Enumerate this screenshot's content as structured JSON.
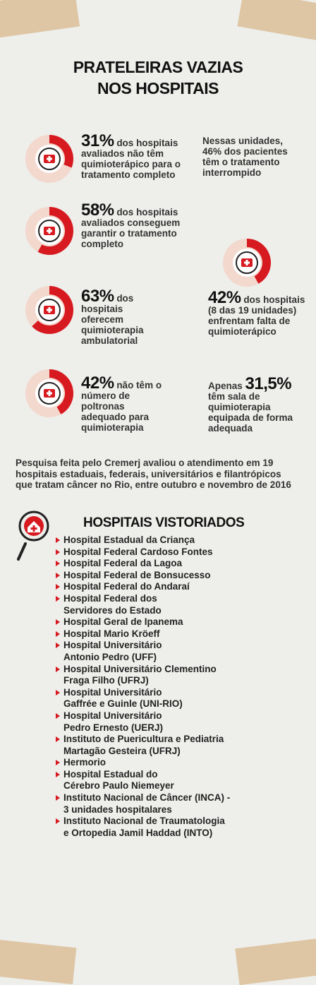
{
  "title": [
    "PRATELEIRAS VAZIAS",
    "NOS HOSPITAIS"
  ],
  "stats": [
    {
      "value": 31,
      "value_label": "31%",
      "text": "dos hospitais avaliados não têm quimioterápico para o tratamento completo"
    },
    {
      "value": 58,
      "value_label": "58%",
      "text": "dos hospitais avaliados conseguem garantir o tratamento completo"
    },
    {
      "value": 63,
      "value_label": "63%",
      "text": "dos hospitais oferecem quimioterapia ambulatorial"
    },
    {
      "value": 42,
      "value_label": "42%",
      "text": "não têm o número de poltronas adequado para quimioterapia"
    },
    {
      "value": 42,
      "value_label": "42%",
      "text": "dos hospitais (8 das 19 unidades) enfrentam falta de quimioterápico"
    }
  ],
  "notes": [
    {
      "text": "Nessas unidades, 46% dos pacientes têm o tratamento interrompido"
    },
    {
      "prefix": "Apenas",
      "value_label": "31,5%",
      "text": "têm sala de quimioterapia equipada de forma adequada"
    }
  ],
  "footnote": "Pesquisa feita pelo Cremerj avaliou o atendimento em 19 hospitais estaduais, federais, universitários e filantrópicos que tratam câncer no Rio, entre outubro e novembro de 2016",
  "list_title": "HOSPITAIS VISTORIADOS",
  "hospitals": [
    [
      "Hospital Estadual da Criança"
    ],
    [
      "Hospital Federal Cardoso Fontes"
    ],
    [
      "Hospital Federal da Lagoa"
    ],
    [
      "Hospital Federal de Bonsucesso"
    ],
    [
      "Hospital Federal do Andaraí"
    ],
    [
      "Hospital Federal dos",
      "Servidores do Estado"
    ],
    [
      "Hospital Geral de Ipanema"
    ],
    [
      "Hospital Mario Kröeff"
    ],
    [
      "Hospital Universitário",
      "Antonio Pedro (UFF)"
    ],
    [
      "Hospital Universitário Clementino",
      "Fraga Filho (UFRJ)"
    ],
    [
      "Hospital Universitário",
      "Gaffrée e Guinle (UNI-RIO)"
    ],
    [
      "Hospital Universitário",
      "Pedro Ernesto (UERJ)"
    ],
    [
      "Instituto de Puericultura e Pediatria",
      "Martagão Gesteira (UFRJ)"
    ],
    [
      "Hermorio"
    ],
    [
      "Hospital Estadual do",
      "Cérebro Paulo Niemeyer"
    ],
    [
      "Instituto Nacional de Câncer (INCA) -",
      "3 unidades hospitalares"
    ],
    [
      "Instituto Nacional de Traumatologia",
      "e Ortopedia Jamil Haddad (INTO)"
    ]
  ]
}
